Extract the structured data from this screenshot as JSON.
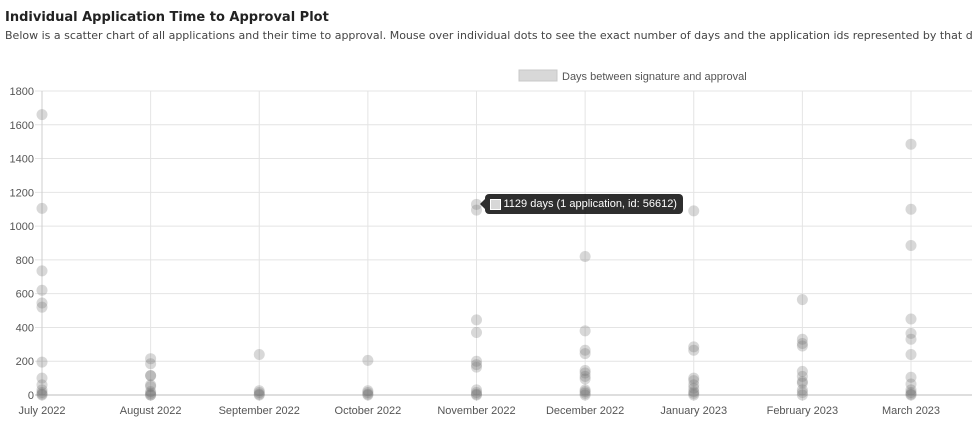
{
  "header": {
    "title": "Individual Application Time to Approval Plot",
    "subtitle": "Below is a scatter chart of all applications and their time to approval. Mouse over individual dots to see the exact number of days and the application ids represented by that dot."
  },
  "tooltip": {
    "text": "1129 days (1 application, id: 56612)",
    "month_index": 4,
    "value": 1129
  },
  "colors": {
    "point_fill": "rgba(100,100,100,0.25)",
    "grid": "#e4e4e4",
    "axis_text": "#555555",
    "legend_swatch": "#d8d8d8"
  },
  "chart_data": {
    "type": "scatter",
    "title": "",
    "xlabel": "",
    "ylabel": "",
    "x_categories": [
      "July 2022",
      "August 2022",
      "September 2022",
      "October 2022",
      "November 2022",
      "December 2022",
      "January 2023",
      "February 2023",
      "March 2023"
    ],
    "ylim": [
      0,
      1800
    ],
    "yticks": [
      0,
      200,
      400,
      600,
      800,
      1000,
      1200,
      1400,
      1600,
      1800
    ],
    "grid": true,
    "legend_position": "top",
    "series": [
      {
        "name": "Days between signature and approval",
        "points": [
          {
            "x": "July 2022",
            "y": 1660
          },
          {
            "x": "July 2022",
            "y": 1105
          },
          {
            "x": "July 2022",
            "y": 735
          },
          {
            "x": "July 2022",
            "y": 620
          },
          {
            "x": "July 2022",
            "y": 545
          },
          {
            "x": "July 2022",
            "y": 520
          },
          {
            "x": "July 2022",
            "y": 195
          },
          {
            "x": "July 2022",
            "y": 100
          },
          {
            "x": "July 2022",
            "y": 60
          },
          {
            "x": "July 2022",
            "y": 30
          },
          {
            "x": "July 2022",
            "y": 15
          },
          {
            "x": "July 2022",
            "y": 5
          },
          {
            "x": "July 2022",
            "y": 0
          },
          {
            "x": "August 2022",
            "y": 215
          },
          {
            "x": "August 2022",
            "y": 185
          },
          {
            "x": "August 2022",
            "y": 115
          },
          {
            "x": "August 2022",
            "y": 115
          },
          {
            "x": "August 2022",
            "y": 60
          },
          {
            "x": "August 2022",
            "y": 50
          },
          {
            "x": "August 2022",
            "y": 20
          },
          {
            "x": "August 2022",
            "y": 10
          },
          {
            "x": "August 2022",
            "y": 0
          },
          {
            "x": "August 2022",
            "y": 0
          },
          {
            "x": "September 2022",
            "y": 240
          },
          {
            "x": "September 2022",
            "y": 25
          },
          {
            "x": "September 2022",
            "y": 15
          },
          {
            "x": "September 2022",
            "y": 5
          },
          {
            "x": "September 2022",
            "y": 0
          },
          {
            "x": "October 2022",
            "y": 205
          },
          {
            "x": "October 2022",
            "y": 25
          },
          {
            "x": "October 2022",
            "y": 15
          },
          {
            "x": "October 2022",
            "y": 5
          },
          {
            "x": "October 2022",
            "y": 0
          },
          {
            "x": "November 2022",
            "y": 1129
          },
          {
            "x": "November 2022",
            "y": 1095
          },
          {
            "x": "November 2022",
            "y": 445
          },
          {
            "x": "November 2022",
            "y": 370
          },
          {
            "x": "November 2022",
            "y": 200
          },
          {
            "x": "November 2022",
            "y": 180
          },
          {
            "x": "November 2022",
            "y": 165
          },
          {
            "x": "November 2022",
            "y": 30
          },
          {
            "x": "November 2022",
            "y": 15
          },
          {
            "x": "November 2022",
            "y": 5
          },
          {
            "x": "November 2022",
            "y": 0
          },
          {
            "x": "December 2022",
            "y": 820
          },
          {
            "x": "December 2022",
            "y": 380
          },
          {
            "x": "December 2022",
            "y": 265
          },
          {
            "x": "December 2022",
            "y": 245
          },
          {
            "x": "December 2022",
            "y": 145
          },
          {
            "x": "December 2022",
            "y": 130
          },
          {
            "x": "December 2022",
            "y": 110
          },
          {
            "x": "December 2022",
            "y": 95
          },
          {
            "x": "December 2022",
            "y": 30
          },
          {
            "x": "December 2022",
            "y": 20
          },
          {
            "x": "December 2022",
            "y": 10
          },
          {
            "x": "December 2022",
            "y": 0
          },
          {
            "x": "January 2023",
            "y": 1090
          },
          {
            "x": "January 2023",
            "y": 285
          },
          {
            "x": "January 2023",
            "y": 265
          },
          {
            "x": "January 2023",
            "y": 100
          },
          {
            "x": "January 2023",
            "y": 85
          },
          {
            "x": "January 2023",
            "y": 60
          },
          {
            "x": "January 2023",
            "y": 40
          },
          {
            "x": "January 2023",
            "y": 20
          },
          {
            "x": "January 2023",
            "y": 10
          },
          {
            "x": "January 2023",
            "y": 0
          },
          {
            "x": "February 2023",
            "y": 565
          },
          {
            "x": "February 2023",
            "y": 330
          },
          {
            "x": "February 2023",
            "y": 305
          },
          {
            "x": "February 2023",
            "y": 290
          },
          {
            "x": "February 2023",
            "y": 140
          },
          {
            "x": "February 2023",
            "y": 110
          },
          {
            "x": "February 2023",
            "y": 80
          },
          {
            "x": "February 2023",
            "y": 70
          },
          {
            "x": "February 2023",
            "y": 30
          },
          {
            "x": "February 2023",
            "y": 15
          },
          {
            "x": "February 2023",
            "y": 0
          },
          {
            "x": "March 2023",
            "y": 1485
          },
          {
            "x": "March 2023",
            "y": 1100
          },
          {
            "x": "March 2023",
            "y": 885
          },
          {
            "x": "March 2023",
            "y": 450
          },
          {
            "x": "March 2023",
            "y": 365
          },
          {
            "x": "March 2023",
            "y": 330
          },
          {
            "x": "March 2023",
            "y": 240
          },
          {
            "x": "March 2023",
            "y": 105
          },
          {
            "x": "March 2023",
            "y": 65
          },
          {
            "x": "March 2023",
            "y": 30
          },
          {
            "x": "March 2023",
            "y": 15
          },
          {
            "x": "March 2023",
            "y": 5
          },
          {
            "x": "March 2023",
            "y": 0
          }
        ]
      }
    ]
  }
}
